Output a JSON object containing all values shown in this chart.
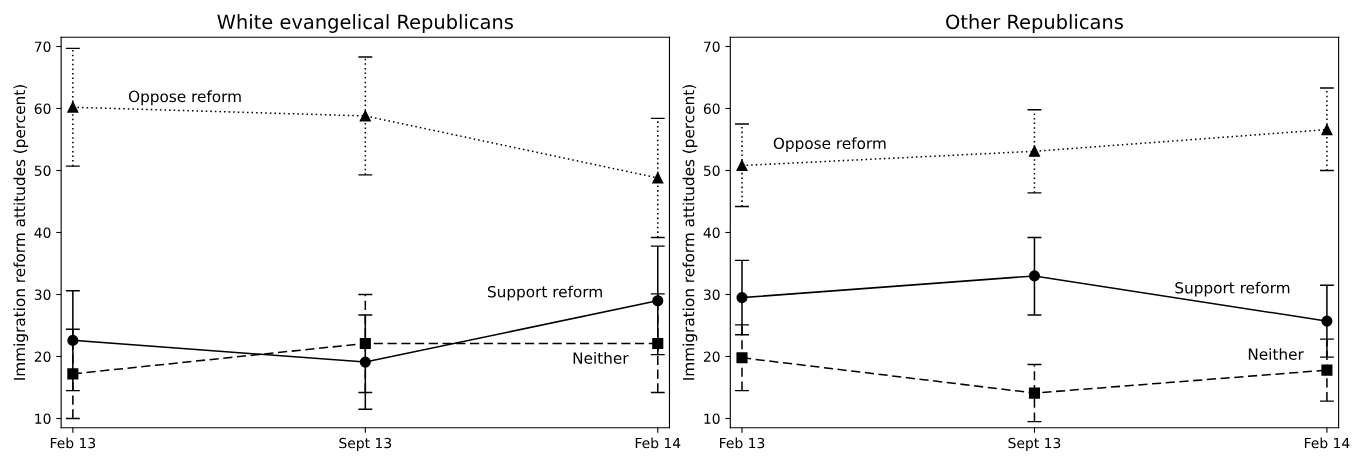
{
  "chart_data": [
    {
      "type": "line",
      "title": "White evangelical Republicans",
      "ylabel": "Immigration reform attitudes (percent)",
      "categories": [
        "Feb 13",
        "Sept 13",
        "Feb 14"
      ],
      "ylim": [
        8.5,
        71.5
      ],
      "yticks": [
        10,
        20,
        30,
        40,
        50,
        60,
        70
      ],
      "grid": false,
      "series": [
        {
          "name": "Oppose reform",
          "color": "#000000",
          "marker": "triangle",
          "line_style": "dotted",
          "values": [
            60.2,
            58.8,
            48.8
          ],
          "errors": [
            [
              50.7,
              69.7
            ],
            [
              49.3,
              68.3
            ],
            [
              39.2,
              58.4
            ]
          ]
        },
        {
          "name": "Support reform",
          "color": "#000000",
          "marker": "circle",
          "line_style": "solid",
          "values": [
            22.6,
            19.1,
            29.0
          ],
          "errors": [
            [
              14.5,
              30.6
            ],
            [
              11.5,
              26.7
            ],
            [
              20.3,
              37.8
            ]
          ]
        },
        {
          "name": "Neither",
          "color": "#000000",
          "marker": "square",
          "line_style": "dashed",
          "values": [
            17.2,
            22.1,
            22.1
          ],
          "errors": [
            [
              10.0,
              24.4
            ],
            [
              14.2,
              30.0
            ],
            [
              14.2,
              30.1
            ]
          ]
        }
      ]
    },
    {
      "type": "line",
      "title": "Other Republicans",
      "ylabel": "Immigration reform attitudes (percent)",
      "categories": [
        "Feb 13",
        "Sept 13",
        "Feb 14"
      ],
      "ylim": [
        8.5,
        71.5
      ],
      "yticks": [
        10,
        20,
        30,
        40,
        50,
        60,
        70
      ],
      "grid": false,
      "series": [
        {
          "name": "Oppose reform",
          "color": "#000000",
          "marker": "triangle",
          "line_style": "dotted",
          "values": [
            50.8,
            53.1,
            56.6
          ],
          "errors": [
            [
              44.2,
              57.5
            ],
            [
              46.4,
              59.8
            ],
            [
              50.0,
              63.3
            ]
          ]
        },
        {
          "name": "Support reform",
          "color": "#000000",
          "marker": "circle",
          "line_style": "solid",
          "values": [
            29.5,
            33.0,
            25.7
          ],
          "errors": [
            [
              23.5,
              35.5
            ],
            [
              26.7,
              39.2
            ],
            [
              19.9,
              31.5
            ]
          ]
        },
        {
          "name": "Neither",
          "color": "#000000",
          "marker": "square",
          "line_style": "dashed",
          "values": [
            19.8,
            14.1,
            17.8
          ],
          "errors": [
            [
              14.5,
              25.1
            ],
            [
              9.5,
              18.7
            ],
            [
              12.8,
              22.8
            ]
          ]
        }
      ]
    }
  ]
}
